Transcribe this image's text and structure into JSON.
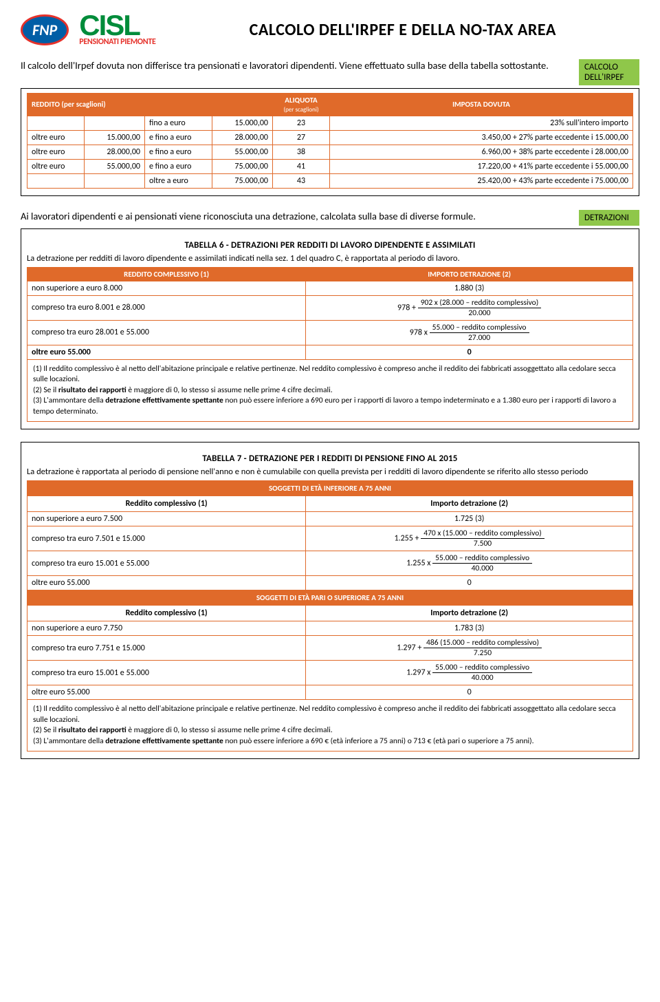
{
  "logo": {
    "fnp": "FNP",
    "cisl": "CISL",
    "sub": "PENSIONATI PIEMONTE"
  },
  "title": "CALCOLO DELL'IRPEF E DELLA NO-TAX AREA",
  "intro": "Il calcolo dell'Irpef dovuta non differisce tra pensionati e lavoratori dipendenti. Viene effettuato sulla base della tabella sottostante.",
  "tag1": "CALCOLO\nDELL'IRPEF",
  "scaglioni": {
    "h1": "REDDITO (per scaglioni)",
    "h2": "ALIQUOTA",
    "h2sub": "(per scaglioni)",
    "h3": "IMPOSTA DOVUTA",
    "rows": [
      {
        "c1a": "",
        "c1b": "",
        "c2a": "fino a euro",
        "c2b": "15.000,00",
        "aliq": "23",
        "imp": "23% sull'intero importo"
      },
      {
        "c1a": "oltre euro",
        "c1b": "15.000,00",
        "c2a": "e fino a euro",
        "c2b": "28.000,00",
        "aliq": "27",
        "imp": "3.450,00   +   27% parte eccedente i 15.000,00"
      },
      {
        "c1a": "oltre euro",
        "c1b": "28.000,00",
        "c2a": "e fino a euro",
        "c2b": "55.000,00",
        "aliq": "38",
        "imp": "6.960,00   +   38% parte eccedente i 28.000,00"
      },
      {
        "c1a": "oltre euro",
        "c1b": "55.000,00",
        "c2a": "e fino a euro",
        "c2b": "75.000,00",
        "aliq": "41",
        "imp": "17.220,00   +   41% parte eccedente i 55.000,00"
      },
      {
        "c1a": "",
        "c1b": "",
        "c2a": "oltre  a  euro",
        "c2b": "75.000,00",
        "aliq": "43",
        "imp": "25.420,00   +   43% parte eccedente i 75.000,00"
      }
    ]
  },
  "tag2": "DETRAZIONI",
  "detr_intro": "Ai lavoratori dipendenti e ai pensionati viene riconosciuta una detrazione, calcolata sulla base di diverse formule.",
  "t6": {
    "title": "TABELLA 6 - DETRAZIONI PER REDDITI DI LAVORO DIPENDENTE E ASSIMILATI",
    "intro": "La detrazione per redditi di lavoro dipendente e assimilati indicati nella sez. 1 del quadro C, è rapportata al periodo di lavoro.",
    "h1": "REDDITO COMPLESSIVO (1)",
    "h2": "IMPORTO DETRAZIONE (2)",
    "rows": [
      {
        "a": "non superiore a euro 8.000",
        "b_plain": "1.880 (3)"
      },
      {
        "a": "compreso tra euro 8.001 e 28.000",
        "b_prefix": "978 + ",
        "num": "902 x (28.000 – reddito complessivo)",
        "den": "20.000"
      },
      {
        "a": "compreso tra euro 28.001 e 55.000",
        "b_prefix": "978 x ",
        "num": "55.000 – reddito complessivo",
        "den": "27.000"
      },
      {
        "a": "oltre euro 55.000",
        "b_plain": "0",
        "bold": true
      }
    ],
    "notes": [
      "(1) Il reddito complessivo è al netto dell'abitazione principale e relative pertinenze. Nel reddito complessivo è compreso anche il reddito dei fabbricati assoggettato alla cedolare secca sulle locazioni.",
      "(2) Se il risultato dei rapporti è maggiore di 0, lo stesso si assume nelle prime 4 cifre decimali.",
      "(3) L'ammontare della detrazione effettivamente spettante non può essere inferiore a 690 euro per i rapporti di lavoro a tempo indeterminato e a 1.380 euro per i rapporti di lavoro a tempo determinato."
    ]
  },
  "t7": {
    "title": "TABELLA 7 - DETRAZIONE PER I REDDITI DI PENSIONE  FINO AL  2015",
    "intro": "La detrazione è rapportata al periodo di pensione nell'anno e non è cumulabile con quella prevista per i redditi di lavoro dipendente se riferito allo stesso periodo",
    "sec1": "SOGGETTI DI ETÀ INFERIORE A 75 ANNI",
    "h1": "Reddito complessivo (1)",
    "h2": "Importo detrazione (2)",
    "rows1": [
      {
        "a": "non superiore a euro 7.500",
        "b_plain": "1.725 (3)"
      },
      {
        "a": "compreso tra euro 7.501 e 15.000",
        "b_prefix": "1.255 + ",
        "num": "470 x (15.000 – reddito complessivo)",
        "den": "7.500"
      },
      {
        "a": "compreso tra euro 15.001 e 55.000",
        "b_prefix": "1.255 x ",
        "num": "55.000 – reddito complessivo",
        "den": "40.000"
      },
      {
        "a": "oltre euro 55.000",
        "b_plain": "0"
      }
    ],
    "sec2": "SOGGETTI DI ETÀ PARI O SUPERIORE A 75 ANNI",
    "rows2": [
      {
        "a": "non superiore a euro 7.750",
        "b_plain": "1.783 (3)"
      },
      {
        "a": "compreso tra euro 7.751 e 15.000",
        "b_prefix": "1.297 + ",
        "num": "486 (15.000 – reddito complessivo)",
        "den": "7.250"
      },
      {
        "a": "compreso tra euro 15.001 e 55.000",
        "b_prefix": "1.297 x ",
        "num": "55.000 – reddito complessivo",
        "den": "40.000"
      },
      {
        "a": "oltre euro 55.000",
        "b_plain": "0"
      }
    ],
    "notes": [
      "(1) Il reddito complessivo è al netto dell'abitazione principale e relative pertinenze. Nel reddito complessivo è compreso anche il reddito dei fabbricati assoggettato alla cedolare secca sulle locazioni.",
      "(2) Se il risultato dei rapporti è maggiore di 0, lo stesso si assume nelle prime 4 cifre decimali.",
      "(3) L'ammontare della detrazione effettivamente spettante non può essere inferiore a 690 € (età inferiore a 75 anni) o 713 € (età pari o superiore a 75 anni)."
    ]
  },
  "bold_frag": {
    "risultato": "risultato dei rapporti",
    "detrazione": "detrazione effettivamente spettante"
  }
}
